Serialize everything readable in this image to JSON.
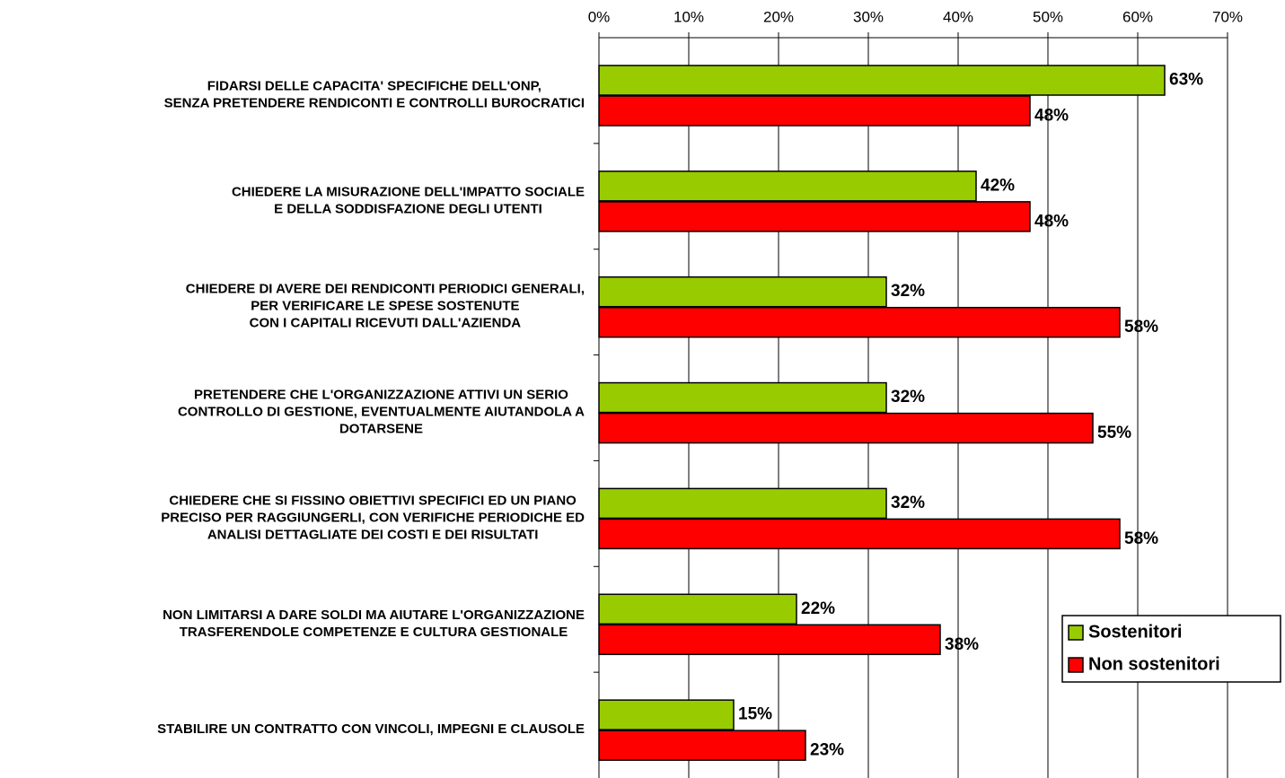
{
  "chart_data": {
    "type": "hbar",
    "categories": [
      [
        "FIDARSI DELLE CAPACITA' SPECIFICHE DELL'ONP,",
        "SENZA PRETENDERE RENDICONTI E CONTROLLI BUROCRATICI"
      ],
      [
        "CHIEDERE LA MISURAZIONE DELL'IMPATTO SOCIALE",
        "E DELLA SODDISFAZIONE DEGLI UTENTI"
      ],
      [
        "CHIEDERE DI AVERE DEI RENDICONTI PERIODICI GENERALI,",
        "PER VERIFICARE LE SPESE SOSTENUTE",
        "CON I CAPITALI RICEVUTI DALL'AZIENDA"
      ],
      [
        "PRETENDERE CHE L'ORGANIZZAZIONE ATTIVI UN SERIO",
        "CONTROLLO DI GESTIONE, EVENTUALMENTE AIUTANDOLA A",
        "DOTARSENE"
      ],
      [
        "CHIEDERE CHE SI FISSINO OBIETTIVI SPECIFICI ED UN PIANO",
        "PRECISO PER RAGGIUNGERLI, CON VERIFICHE PERIODICHE ED",
        "ANALISI DETTAGLIATE DEI COSTI E DEI RISULTATI"
      ],
      [
        "NON LIMITARSI A DARE SOLDI MA AIUTARE L'ORGANIZZAZIONE",
        "TRASFERENDOLE COMPETENZE E CULTURA GESTIONALE"
      ],
      [
        "STABILIRE UN CONTRATTO CON VINCOLI, IMPEGNI E CLAUSOLE"
      ]
    ],
    "series": [
      {
        "name": "Sostenitori",
        "color": "#99cc00",
        "values": [
          63,
          42,
          32,
          32,
          32,
          22,
          15
        ],
        "value_labels": [
          "63%",
          "42%",
          "32%",
          "32%",
          "32%",
          "22%",
          "15%"
        ]
      },
      {
        "name": "Non sostenitori",
        "color": "#ff0000",
        "values": [
          48,
          48,
          58,
          55,
          58,
          38,
          23
        ],
        "value_labels": [
          "48%",
          "48%",
          "58%",
          "55%",
          "58%",
          "38%",
          "23%"
        ]
      }
    ],
    "xlim": [
      0,
      70
    ],
    "xticks": [
      {
        "value": 0,
        "label": "0%"
      },
      {
        "value": 10,
        "label": "10%"
      },
      {
        "value": 20,
        "label": "20%"
      },
      {
        "value": 30,
        "label": "30%"
      },
      {
        "value": 40,
        "label": "40%"
      },
      {
        "value": 50,
        "label": "50%"
      },
      {
        "value": 60,
        "label": "60%"
      },
      {
        "value": 70,
        "label": "70%"
      }
    ],
    "grid": true,
    "legend": "lower-right"
  }
}
